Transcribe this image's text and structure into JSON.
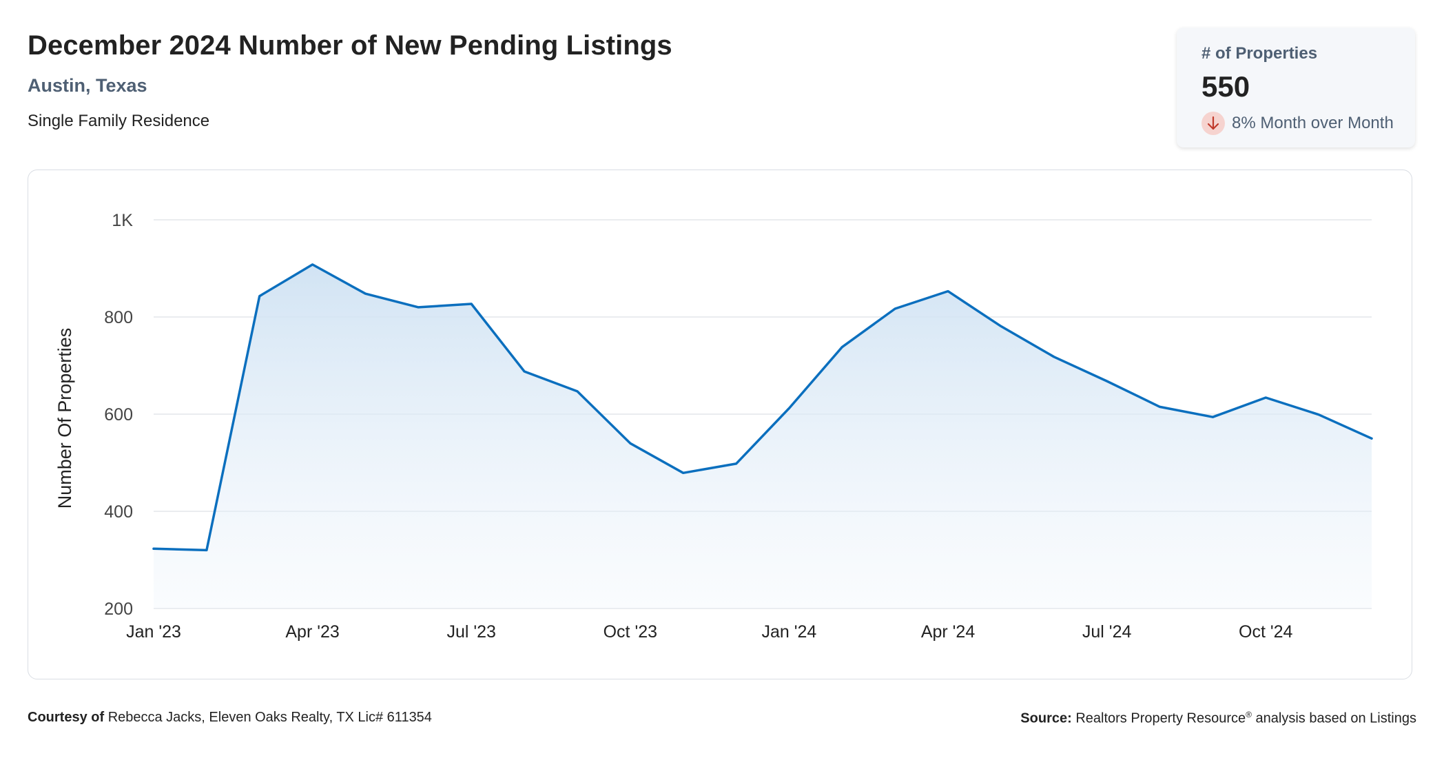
{
  "header": {
    "title": "December 2024 Number of New Pending Listings",
    "location": "Austin, Texas",
    "property_type": "Single Family Residence"
  },
  "kpi": {
    "label": "# of Properties",
    "value": "550",
    "change_text": "8% Month over Month",
    "change_direction": "down",
    "change_icon": "arrow-down-icon"
  },
  "footer": {
    "courtesy_label": "Courtesy of",
    "courtesy_text": "Rebecca Jacks, Eleven Oaks Realty, TX Lic# 611354",
    "source_label": "Source:",
    "source_text_a": "Realtors Property Resource",
    "source_mark": "®",
    "source_text_b": " analysis based on Listings"
  },
  "colors": {
    "line": "#0b6fbe",
    "fill_top": "#cfe2f3",
    "grid": "#e3e6ea",
    "subtitle": "#4e5f73",
    "down_badge": "#f6d3cf",
    "down_arrow": "#c0392b"
  },
  "chart_data": {
    "type": "area",
    "title": "",
    "xlabel": "",
    "ylabel": "Number Of Properties",
    "ylim": [
      200,
      1000
    ],
    "yticks": [
      200,
      400,
      600,
      800,
      1000
    ],
    "ytick_labels": [
      "200",
      "400",
      "600",
      "800",
      "1K"
    ],
    "grid": true,
    "x": [
      "Jan '23",
      "Feb '23",
      "Mar '23",
      "Apr '23",
      "May '23",
      "Jun '23",
      "Jul '23",
      "Aug '23",
      "Sep '23",
      "Oct '23",
      "Nov '23",
      "Dec '23",
      "Jan '24",
      "Feb '24",
      "Mar '24",
      "Apr '24",
      "May '24",
      "Jun '24",
      "Jul '24",
      "Aug '24",
      "Sep '24",
      "Oct '24",
      "Nov '24",
      "Dec '24"
    ],
    "xtick_labels": [
      "Jan '23",
      "Apr '23",
      "Jul '23",
      "Oct '23",
      "Jan '24",
      "Apr '24",
      "Jul '24",
      "Oct '24"
    ],
    "series": [
      {
        "name": "",
        "values": [
          323,
          320,
          843,
          908,
          848,
          820,
          827,
          688,
          647,
          540,
          479,
          498,
          612,
          738,
          817,
          853,
          781,
          718,
          668,
          615,
          594,
          634,
          599,
          550
        ]
      }
    ]
  }
}
